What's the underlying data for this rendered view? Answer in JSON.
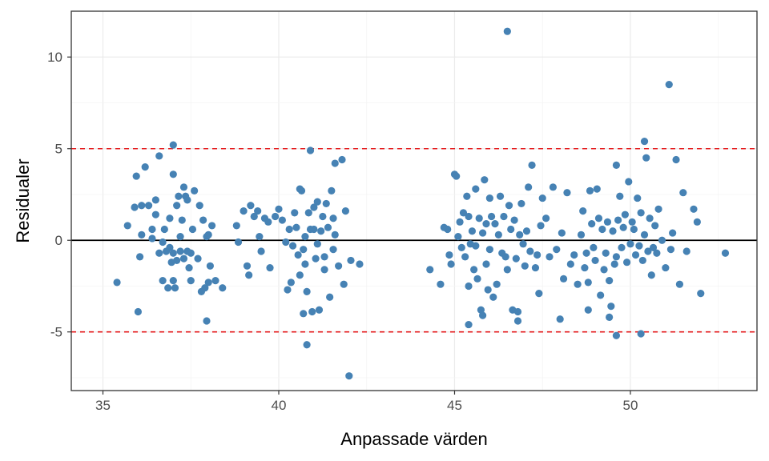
{
  "chart_data": {
    "type": "scatter",
    "xlabel": "Anpassade värden",
    "ylabel": "Residualer",
    "xlim": [
      34.1,
      53.6
    ],
    "ylim": [
      -8.2,
      12.5
    ],
    "x_ticks": [
      35,
      40,
      45,
      50
    ],
    "y_ticks": [
      -5,
      0,
      5,
      10
    ],
    "x_tick_labels": [
      "35",
      "40",
      "45",
      "50"
    ],
    "y_tick_labels": [
      "-5",
      "0",
      "5",
      "10"
    ],
    "grid": true,
    "reference_lines": [
      {
        "y": 0,
        "style": "solid",
        "color": "#000000"
      },
      {
        "y": 5,
        "style": "dashed",
        "color": "#e41a1c"
      },
      {
        "y": -5,
        "style": "dashed",
        "color": "#e41a1c"
      }
    ],
    "point_color": "#4682b4",
    "points": [
      [
        35.4,
        -2.3
      ],
      [
        35.7,
        0.8
      ],
      [
        35.9,
        1.8
      ],
      [
        35.95,
        3.5
      ],
      [
        36.0,
        -3.9
      ],
      [
        36.05,
        -0.9
      ],
      [
        36.1,
        1.9
      ],
      [
        36.1,
        0.3
      ],
      [
        36.2,
        4.0
      ],
      [
        36.3,
        1.9
      ],
      [
        36.4,
        0.6
      ],
      [
        36.4,
        0.1
      ],
      [
        36.5,
        2.2
      ],
      [
        36.5,
        1.4
      ],
      [
        36.6,
        4.6
      ],
      [
        36.6,
        -0.7
      ],
      [
        36.7,
        -0.1
      ],
      [
        36.7,
        -2.2
      ],
      [
        36.75,
        0.6
      ],
      [
        36.8,
        -0.6
      ],
      [
        36.85,
        -2.6
      ],
      [
        36.9,
        1.2
      ],
      [
        36.9,
        -0.4
      ],
      [
        36.95,
        -1.2
      ],
      [
        37.0,
        5.2
      ],
      [
        37.0,
        3.6
      ],
      [
        37.0,
        -0.7
      ],
      [
        37.0,
        -2.2
      ],
      [
        37.05,
        -2.6
      ],
      [
        37.1,
        1.9
      ],
      [
        37.1,
        -1.1
      ],
      [
        37.15,
        2.4
      ],
      [
        37.2,
        0.2
      ],
      [
        37.2,
        -0.6
      ],
      [
        37.25,
        1.1
      ],
      [
        37.3,
        -1.0
      ],
      [
        37.3,
        2.9
      ],
      [
        37.35,
        2.4
      ],
      [
        37.4,
        2.2
      ],
      [
        37.4,
        -0.6
      ],
      [
        37.45,
        -1.5
      ],
      [
        37.5,
        -2.2
      ],
      [
        37.5,
        -0.7
      ],
      [
        37.55,
        0.6
      ],
      [
        37.6,
        2.7
      ],
      [
        37.7,
        -1.0
      ],
      [
        37.75,
        1.9
      ],
      [
        37.8,
        -2.8
      ],
      [
        37.85,
        1.1
      ],
      [
        37.9,
        -2.6
      ],
      [
        37.95,
        -4.4
      ],
      [
        37.95,
        0.2
      ],
      [
        38.0,
        0.3
      ],
      [
        38.0,
        -2.3
      ],
      [
        38.05,
        -1.4
      ],
      [
        38.1,
        0.8
      ],
      [
        38.2,
        -2.2
      ],
      [
        38.4,
        -2.6
      ],
      [
        38.8,
        0.8
      ],
      [
        38.85,
        -0.1
      ],
      [
        39.0,
        1.6
      ],
      [
        39.1,
        -1.4
      ],
      [
        39.15,
        -1.9
      ],
      [
        39.2,
        1.9
      ],
      [
        39.3,
        1.3
      ],
      [
        39.4,
        1.6
      ],
      [
        39.45,
        0.2
      ],
      [
        39.5,
        -0.6
      ],
      [
        39.6,
        1.2
      ],
      [
        39.7,
        1.0
      ],
      [
        39.75,
        -1.5
      ],
      [
        39.9,
        1.3
      ],
      [
        40.0,
        1.7
      ],
      [
        40.1,
        1.1
      ],
      [
        40.2,
        -0.1
      ],
      [
        40.25,
        -2.7
      ],
      [
        40.3,
        0.6
      ],
      [
        40.35,
        -2.3
      ],
      [
        40.4,
        -0.3
      ],
      [
        40.45,
        1.5
      ],
      [
        40.5,
        0.7
      ],
      [
        40.55,
        -0.8
      ],
      [
        40.6,
        2.8
      ],
      [
        40.6,
        -1.9
      ],
      [
        40.65,
        2.7
      ],
      [
        40.7,
        -0.5
      ],
      [
        40.75,
        0.2
      ],
      [
        40.75,
        -1.3
      ],
      [
        40.8,
        -2.8
      ],
      [
        40.85,
        1.5
      ],
      [
        40.9,
        0.6
      ],
      [
        40.95,
        -3.9
      ],
      [
        41.0,
        1.8
      ],
      [
        41.0,
        0.6
      ],
      [
        41.05,
        -1.0
      ],
      [
        41.1,
        2.1
      ],
      [
        41.1,
        -0.2
      ],
      [
        41.15,
        -3.8
      ],
      [
        41.2,
        0.5
      ],
      [
        41.25,
        1.3
      ],
      [
        41.3,
        -0.9
      ],
      [
        41.3,
        -1.6
      ],
      [
        41.35,
        2.0
      ],
      [
        41.4,
        0.7
      ],
      [
        41.45,
        -3.1
      ],
      [
        41.5,
        2.7
      ],
      [
        41.55,
        1.2
      ],
      [
        41.55,
        -0.5
      ],
      [
        41.6,
        4.2
      ],
      [
        41.6,
        0.3
      ],
      [
        41.7,
        -1.4
      ],
      [
        41.8,
        4.4
      ],
      [
        41.85,
        -2.4
      ],
      [
        41.9,
        1.6
      ],
      [
        42.0,
        -7.4
      ],
      [
        42.05,
        -1.1
      ],
      [
        42.3,
        -1.3
      ],
      [
        40.9,
        4.9
      ],
      [
        40.8,
        -5.7
      ],
      [
        40.7,
        -4.0
      ],
      [
        44.3,
        -1.6
      ],
      [
        44.6,
        -2.4
      ],
      [
        44.7,
        0.7
      ],
      [
        44.8,
        0.6
      ],
      [
        44.85,
        -0.8
      ],
      [
        44.9,
        -1.3
      ],
      [
        45.0,
        3.6
      ],
      [
        45.05,
        3.5
      ],
      [
        45.1,
        0.2
      ],
      [
        45.15,
        1.0
      ],
      [
        45.2,
        -0.4
      ],
      [
        45.25,
        1.5
      ],
      [
        45.3,
        -0.9
      ],
      [
        45.35,
        2.4
      ],
      [
        45.4,
        1.3
      ],
      [
        45.4,
        -2.5
      ],
      [
        45.45,
        -0.2
      ],
      [
        45.5,
        0.5
      ],
      [
        45.55,
        -1.6
      ],
      [
        45.6,
        2.8
      ],
      [
        45.6,
        -0.3
      ],
      [
        45.65,
        -2.1
      ],
      [
        45.7,
        1.2
      ],
      [
        45.75,
        -3.8
      ],
      [
        45.8,
        0.4
      ],
      [
        45.85,
        3.3
      ],
      [
        45.9,
        0.9
      ],
      [
        45.9,
        -1.3
      ],
      [
        45.95,
        -2.7
      ],
      [
        46.0,
        2.3
      ],
      [
        46.0,
        -0.5
      ],
      [
        46.05,
        1.3
      ],
      [
        46.1,
        -3.1
      ],
      [
        46.15,
        0.9
      ],
      [
        46.2,
        -2.4
      ],
      [
        46.25,
        0.3
      ],
      [
        46.3,
        2.4
      ],
      [
        46.35,
        -0.7
      ],
      [
        46.4,
        1.3
      ],
      [
        46.45,
        -0.9
      ],
      [
        46.5,
        -1.6
      ],
      [
        46.55,
        1.9
      ],
      [
        46.6,
        0.6
      ],
      [
        46.65,
        -3.8
      ],
      [
        46.7,
        1.1
      ],
      [
        46.75,
        -1.0
      ],
      [
        46.8,
        -3.9
      ],
      [
        46.85,
        0.3
      ],
      [
        46.9,
        2.0
      ],
      [
        46.95,
        -0.2
      ],
      [
        47.0,
        -1.4
      ],
      [
        47.05,
        0.5
      ],
      [
        47.1,
        2.9
      ],
      [
        47.15,
        -0.6
      ],
      [
        47.2,
        4.1
      ],
      [
        47.3,
        -1.5
      ],
      [
        47.35,
        -0.8
      ],
      [
        47.4,
        -2.9
      ],
      [
        47.45,
        0.8
      ],
      [
        47.5,
        2.3
      ],
      [
        47.6,
        1.2
      ],
      [
        47.7,
        -0.9
      ],
      [
        47.8,
        2.9
      ],
      [
        47.9,
        -0.5
      ],
      [
        48.0,
        -4.3
      ],
      [
        48.05,
        0.4
      ],
      [
        48.1,
        -2.1
      ],
      [
        48.2,
        2.6
      ],
      [
        48.3,
        -1.3
      ],
      [
        48.4,
        -0.8
      ],
      [
        46.5,
        11.4
      ],
      [
        45.4,
        -4.6
      ],
      [
        45.8,
        -4.1
      ],
      [
        46.8,
        -4.4
      ],
      [
        48.5,
        -2.4
      ],
      [
        48.6,
        0.3
      ],
      [
        48.65,
        1.6
      ],
      [
        48.7,
        -1.5
      ],
      [
        48.75,
        -0.7
      ],
      [
        48.8,
        -2.3
      ],
      [
        48.85,
        2.7
      ],
      [
        48.9,
        0.9
      ],
      [
        48.95,
        -0.4
      ],
      [
        49.0,
        -1.1
      ],
      [
        49.05,
        2.8
      ],
      [
        49.1,
        1.2
      ],
      [
        49.15,
        -3.0
      ],
      [
        49.2,
        0.6
      ],
      [
        49.25,
        -1.6
      ],
      [
        49.3,
        -0.7
      ],
      [
        49.35,
        1.0
      ],
      [
        49.4,
        -2.2
      ],
      [
        49.45,
        -3.6
      ],
      [
        49.5,
        0.5
      ],
      [
        49.55,
        -1.3
      ],
      [
        49.6,
        4.1
      ],
      [
        49.6,
        -0.9
      ],
      [
        49.65,
        1.1
      ],
      [
        49.7,
        2.4
      ],
      [
        49.75,
        -0.4
      ],
      [
        49.8,
        0.7
      ],
      [
        49.85,
        1.4
      ],
      [
        49.9,
        -1.2
      ],
      [
        49.95,
        3.2
      ],
      [
        50.0,
        -0.2
      ],
      [
        50.05,
        1.0
      ],
      [
        50.1,
        0.6
      ],
      [
        50.15,
        -0.8
      ],
      [
        50.2,
        2.3
      ],
      [
        50.25,
        -0.3
      ],
      [
        50.3,
        1.5
      ],
      [
        50.35,
        -1.1
      ],
      [
        50.4,
        5.4
      ],
      [
        50.4,
        0.3
      ],
      [
        50.45,
        4.5
      ],
      [
        50.5,
        -0.6
      ],
      [
        50.55,
        1.2
      ],
      [
        50.6,
        -1.9
      ],
      [
        50.65,
        -0.4
      ],
      [
        50.7,
        0.8
      ],
      [
        50.75,
        -0.7
      ],
      [
        50.8,
        1.7
      ],
      [
        50.9,
        0.0
      ],
      [
        51.0,
        -1.5
      ],
      [
        51.1,
        8.5
      ],
      [
        51.15,
        -0.5
      ],
      [
        51.2,
        0.4
      ],
      [
        51.3,
        4.4
      ],
      [
        51.4,
        -2.4
      ],
      [
        51.5,
        2.6
      ],
      [
        51.6,
        -0.6
      ],
      [
        51.8,
        1.7
      ],
      [
        51.9,
        1.0
      ],
      [
        52.0,
        -2.9
      ],
      [
        52.7,
        -0.7
      ],
      [
        50.3,
        -5.1
      ],
      [
        49.6,
        -5.2
      ],
      [
        49.4,
        -4.2
      ],
      [
        48.8,
        -3.8
      ]
    ]
  }
}
